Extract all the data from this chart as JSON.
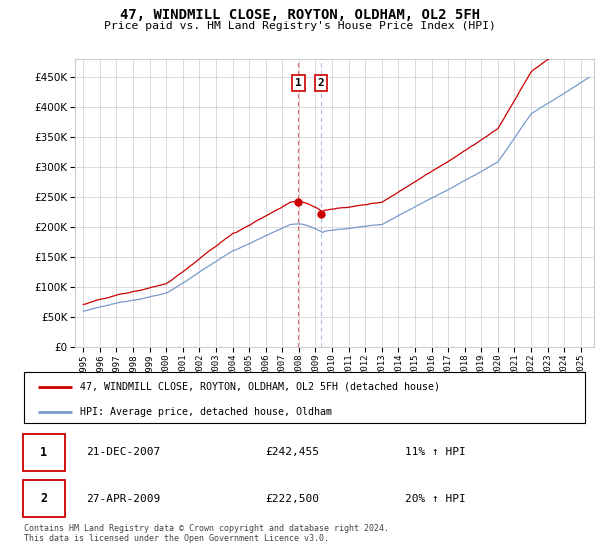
{
  "title": "47, WINDMILL CLOSE, ROYTON, OLDHAM, OL2 5FH",
  "subtitle": "Price paid vs. HM Land Registry's House Price Index (HPI)",
  "legend_line1": "47, WINDMILL CLOSE, ROYTON, OLDHAM, OL2 5FH (detached house)",
  "legend_line2": "HPI: Average price, detached house, Oldham",
  "transaction1_date": "21-DEC-2007",
  "transaction1_price": "£242,455",
  "transaction1_hpi": "11% ↑ HPI",
  "transaction2_date": "27-APR-2009",
  "transaction2_price": "£222,500",
  "transaction2_hpi": "20% ↑ HPI",
  "footer": "Contains HM Land Registry data © Crown copyright and database right 2024.\nThis data is licensed under the Open Government Licence v3.0.",
  "red_color": "#cc0000",
  "blue_color": "#7799cc",
  "grid_color": "#cccccc",
  "ylim_min": 0,
  "ylim_max": 480000,
  "yticks": [
    0,
    50000,
    100000,
    150000,
    200000,
    250000,
    300000,
    350000,
    400000,
    450000
  ],
  "transaction1_x": 2007.97,
  "transaction2_x": 2009.33,
  "transaction1_y": 242455,
  "transaction2_y": 222500,
  "xmin": 1994.5,
  "xmax": 2025.8
}
